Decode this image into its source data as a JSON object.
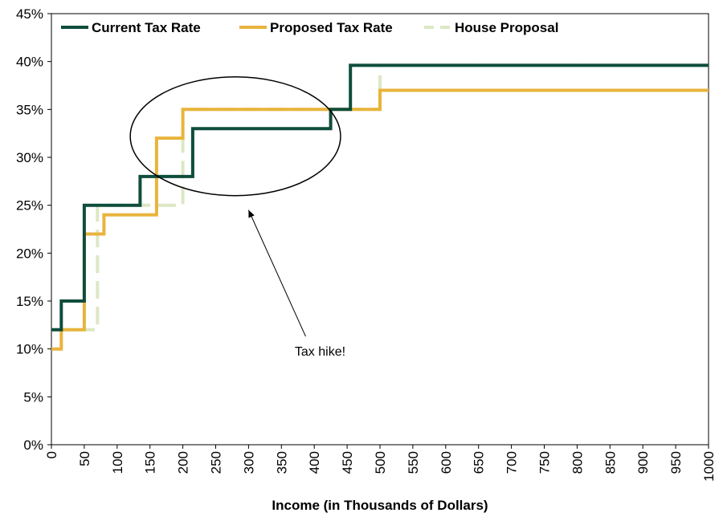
{
  "chart_data": {
    "type": "line",
    "title": "",
    "xlabel": "Income (in Thousands of Dollars)",
    "ylabel": "",
    "xlim": [
      0,
      1000
    ],
    "ylim": [
      0,
      45
    ],
    "x_ticks": [
      0,
      50,
      100,
      150,
      200,
      250,
      300,
      350,
      400,
      450,
      500,
      550,
      600,
      650,
      700,
      750,
      800,
      850,
      900,
      950,
      1000
    ],
    "y_ticks": [
      0,
      5,
      10,
      15,
      20,
      25,
      30,
      35,
      40,
      45
    ],
    "y_tick_labels": [
      "0%",
      "5%",
      "10%",
      "15%",
      "20%",
      "25%",
      "30%",
      "35%",
      "40%",
      "45%"
    ],
    "grid": false,
    "legend_position": "top",
    "series": [
      {
        "name": "Current Tax Rate",
        "color": "#0f4d3c",
        "style": "solid",
        "x": [
          0,
          15,
          15,
          50,
          50,
          135,
          135,
          215,
          215,
          425,
          425,
          455,
          455,
          1000
        ],
        "y": [
          12,
          12,
          15,
          15,
          25,
          25,
          28,
          28,
          33,
          33,
          35,
          35,
          39.6,
          39.6
        ]
      },
      {
        "name": "Proposed Tax Rate",
        "color": "#e8b43c",
        "style": "solid",
        "x": [
          0,
          15,
          15,
          50,
          50,
          80,
          80,
          160,
          160,
          200,
          200,
          500,
          500,
          1000
        ],
        "y": [
          10,
          10,
          12,
          12,
          22,
          22,
          24,
          24,
          32,
          32,
          35,
          35,
          37,
          37
        ]
      },
      {
        "name": "House Proposal",
        "color": "#dce8c4",
        "style": "dashed",
        "x": [
          0,
          70,
          70,
          200,
          200,
          500,
          500,
          1000
        ],
        "y": [
          12,
          12,
          25,
          25,
          35,
          35,
          39.6,
          39.6
        ]
      }
    ],
    "annotations": [
      {
        "text": "Tax hike!",
        "x": 360,
        "y": 9.8,
        "arrow_to": [
          300,
          24.5
        ],
        "ellipse_center": [
          280,
          32.2
        ],
        "ellipse_rx": 160,
        "ellipse_ry": 6.2
      }
    ]
  }
}
